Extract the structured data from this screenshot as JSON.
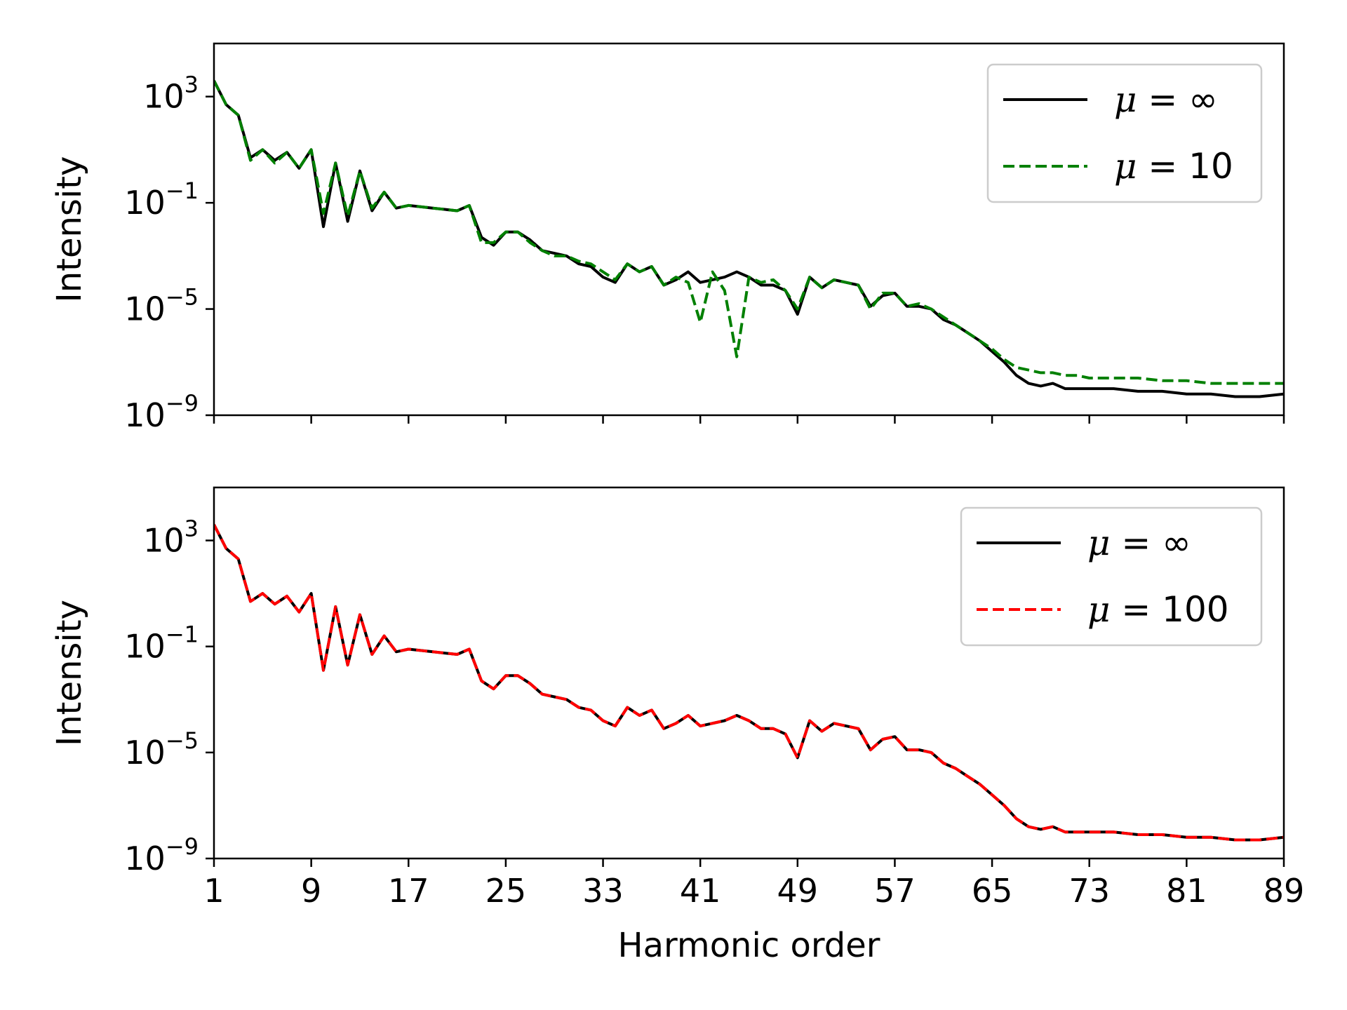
{
  "chart_data": [
    {
      "type": "line",
      "panel": "top",
      "title": "",
      "xlabel": "",
      "ylabel": "Intensity",
      "xlim": [
        1,
        89
      ],
      "ylim_log10": [
        -9,
        5
      ],
      "yscale": "log",
      "xticks": [
        1,
        9,
        17,
        25,
        33,
        41,
        49,
        57,
        65,
        73,
        81,
        89
      ],
      "xtick_labels_visible": false,
      "yticks": [
        {
          "base": "10",
          "exp": "3",
          "log10": 3
        },
        {
          "base": "10",
          "exp": "−1",
          "log10": -1
        },
        {
          "base": "10",
          "exp": "−5",
          "log10": -5
        },
        {
          "base": "10",
          "exp": "−9",
          "log10": -9
        }
      ],
      "legend": {
        "location": "upper right",
        "entries": [
          {
            "var": "μ",
            "rest": " = ∞",
            "color": "#000000",
            "dash": "solid"
          },
          {
            "var": "μ",
            "rest": " = 10",
            "color": "#008000",
            "dash": "dashed"
          }
        ]
      },
      "series": [
        {
          "key": "inf",
          "color": "#000000",
          "dash": "solid",
          "x": [
            1,
            2,
            3,
            4,
            5,
            6,
            7,
            8,
            9,
            10,
            11,
            12,
            13,
            14,
            15,
            16,
            17,
            19,
            21,
            22,
            23,
            24,
            25,
            26,
            27,
            28,
            29,
            30,
            31,
            32,
            33,
            34,
            35,
            36,
            37,
            38,
            39,
            40,
            41,
            42,
            43,
            44,
            45,
            46,
            47,
            48,
            49,
            50,
            51,
            52,
            53,
            54,
            55,
            56,
            57,
            58,
            59,
            60,
            61,
            62,
            63,
            64,
            65,
            66,
            67,
            68,
            69,
            70,
            71,
            72,
            73,
            75,
            77,
            79,
            81,
            83,
            85,
            87,
            89
          ],
          "log10_y": [
            3.6,
            2.7,
            2.3,
            0.7,
            1.0,
            0.6,
            0.9,
            0.3,
            1.0,
            -1.9,
            0.5,
            -1.7,
            0.2,
            -1.3,
            -0.6,
            -1.2,
            -1.1,
            -1.2,
            -1.3,
            -1.1,
            -2.3,
            -2.6,
            -2.1,
            -2.1,
            -2.4,
            -2.8,
            -2.9,
            -3.0,
            -3.3,
            -3.4,
            -3.8,
            -4.0,
            -3.3,
            -3.6,
            -3.4,
            -4.1,
            -3.9,
            -3.6,
            -4.0,
            -3.9,
            -3.8,
            -3.6,
            -3.8,
            -4.1,
            -4.1,
            -4.3,
            -5.2,
            -3.8,
            -4.2,
            -3.9,
            -4.0,
            -4.1,
            -4.9,
            -4.5,
            -4.4,
            -4.9,
            -4.9,
            -5.0,
            -5.4,
            -5.6,
            -5.9,
            -6.2,
            -6.6,
            -7.0,
            -7.5,
            -7.8,
            -7.9,
            -7.8,
            -8.0,
            -8.0,
            -8.0,
            -8.0,
            -8.1,
            -8.1,
            -8.2,
            -8.2,
            -8.3,
            -8.3,
            -8.2
          ]
        },
        {
          "key": "mu10",
          "color": "#008000",
          "dash": "dashed",
          "x": [
            1,
            2,
            3,
            4,
            5,
            6,
            7,
            8,
            9,
            10,
            11,
            12,
            13,
            14,
            15,
            16,
            17,
            19,
            21,
            22,
            23,
            24,
            25,
            26,
            27,
            28,
            29,
            30,
            31,
            32,
            33,
            34,
            35,
            36,
            37,
            38,
            39,
            40,
            41,
            42,
            43,
            44,
            45,
            46,
            47,
            48,
            49,
            50,
            51,
            52,
            53,
            54,
            55,
            56,
            57,
            58,
            59,
            60,
            61,
            62,
            63,
            64,
            65,
            66,
            67,
            68,
            69,
            70,
            71,
            72,
            73,
            75,
            77,
            79,
            81,
            83,
            85,
            87,
            89
          ],
          "log10_y": [
            3.6,
            2.7,
            2.3,
            0.6,
            1.0,
            0.5,
            0.9,
            0.3,
            1.0,
            -1.4,
            0.5,
            -1.5,
            0.2,
            -1.2,
            -0.6,
            -1.2,
            -1.1,
            -1.2,
            -1.3,
            -1.1,
            -2.5,
            -2.5,
            -2.1,
            -2.1,
            -2.5,
            -2.8,
            -3.0,
            -3.0,
            -3.2,
            -3.3,
            -3.6,
            -3.9,
            -3.3,
            -3.6,
            -3.4,
            -4.1,
            -3.8,
            -4.0,
            -5.5,
            -3.6,
            -4.3,
            -6.8,
            -3.8,
            -4.0,
            -3.9,
            -4.3,
            -5.0,
            -3.8,
            -4.2,
            -3.9,
            -4.0,
            -4.1,
            -5.0,
            -4.4,
            -4.4,
            -4.9,
            -4.8,
            -5.0,
            -5.3,
            -5.6,
            -5.9,
            -6.2,
            -6.5,
            -6.9,
            -7.2,
            -7.3,
            -7.4,
            -7.4,
            -7.5,
            -7.5,
            -7.6,
            -7.6,
            -7.6,
            -7.7,
            -7.7,
            -7.8,
            -7.8,
            -7.8,
            -7.8
          ]
        }
      ]
    },
    {
      "type": "line",
      "panel": "bottom",
      "title": "",
      "xlabel": "Harmonic order",
      "ylabel": "Intensity",
      "xlim": [
        1,
        89
      ],
      "ylim_log10": [
        -9,
        5
      ],
      "yscale": "log",
      "xticks": [
        1,
        9,
        17,
        25,
        33,
        41,
        49,
        57,
        65,
        73,
        81,
        89
      ],
      "xtick_labels": [
        "1",
        "9",
        "17",
        "25",
        "33",
        "41",
        "49",
        "57",
        "65",
        "73",
        "81",
        "89"
      ],
      "yticks": [
        {
          "base": "10",
          "exp": "3",
          "log10": 3
        },
        {
          "base": "10",
          "exp": "−1",
          "log10": -1
        },
        {
          "base": "10",
          "exp": "−5",
          "log10": -5
        },
        {
          "base": "10",
          "exp": "−9",
          "log10": -9
        }
      ],
      "legend": {
        "location": "upper right",
        "entries": [
          {
            "var": "μ",
            "rest": " = ∞",
            "color": "#000000",
            "dash": "solid"
          },
          {
            "var": "μ",
            "rest": " = 100",
            "color": "#ff0000",
            "dash": "dashed"
          }
        ]
      },
      "series": [
        {
          "key": "inf",
          "color": "#000000",
          "dash": "solid",
          "x": [
            1,
            2,
            3,
            4,
            5,
            6,
            7,
            8,
            9,
            10,
            11,
            12,
            13,
            14,
            15,
            16,
            17,
            19,
            21,
            22,
            23,
            24,
            25,
            26,
            27,
            28,
            29,
            30,
            31,
            32,
            33,
            34,
            35,
            36,
            37,
            38,
            39,
            40,
            41,
            42,
            43,
            44,
            45,
            46,
            47,
            48,
            49,
            50,
            51,
            52,
            53,
            54,
            55,
            56,
            57,
            58,
            59,
            60,
            61,
            62,
            63,
            64,
            65,
            66,
            67,
            68,
            69,
            70,
            71,
            72,
            73,
            75,
            77,
            79,
            81,
            83,
            85,
            87,
            89
          ],
          "log10_y": [
            3.6,
            2.7,
            2.3,
            0.7,
            1.0,
            0.6,
            0.9,
            0.3,
            1.0,
            -1.9,
            0.5,
            -1.7,
            0.2,
            -1.3,
            -0.6,
            -1.2,
            -1.1,
            -1.2,
            -1.3,
            -1.1,
            -2.3,
            -2.6,
            -2.1,
            -2.1,
            -2.4,
            -2.8,
            -2.9,
            -3.0,
            -3.3,
            -3.4,
            -3.8,
            -4.0,
            -3.3,
            -3.6,
            -3.4,
            -4.1,
            -3.9,
            -3.6,
            -4.0,
            -3.9,
            -3.8,
            -3.6,
            -3.8,
            -4.1,
            -4.1,
            -4.3,
            -5.2,
            -3.8,
            -4.2,
            -3.9,
            -4.0,
            -4.1,
            -4.9,
            -4.5,
            -4.4,
            -4.9,
            -4.9,
            -5.0,
            -5.4,
            -5.6,
            -5.9,
            -6.2,
            -6.6,
            -7.0,
            -7.5,
            -7.8,
            -7.9,
            -7.8,
            -8.0,
            -8.0,
            -8.0,
            -8.0,
            -8.1,
            -8.1,
            -8.2,
            -8.2,
            -8.3,
            -8.3,
            -8.2
          ]
        },
        {
          "key": "mu100",
          "color": "#ff0000",
          "dash": "dashed",
          "x": [
            1,
            2,
            3,
            4,
            5,
            6,
            7,
            8,
            9,
            10,
            11,
            12,
            13,
            14,
            15,
            16,
            17,
            19,
            21,
            22,
            23,
            24,
            25,
            26,
            27,
            28,
            29,
            30,
            31,
            32,
            33,
            34,
            35,
            36,
            37,
            38,
            39,
            40,
            41,
            42,
            43,
            44,
            45,
            46,
            47,
            48,
            49,
            50,
            51,
            52,
            53,
            54,
            55,
            56,
            57,
            58,
            59,
            60,
            61,
            62,
            63,
            64,
            65,
            66,
            67,
            68,
            69,
            70,
            71,
            72,
            73,
            75,
            77,
            79,
            81,
            83,
            85,
            87,
            89
          ],
          "log10_y": [
            3.6,
            2.7,
            2.3,
            0.7,
            1.0,
            0.6,
            0.9,
            0.3,
            1.0,
            -1.9,
            0.5,
            -1.7,
            0.2,
            -1.3,
            -0.6,
            -1.2,
            -1.1,
            -1.2,
            -1.3,
            -1.1,
            -2.3,
            -2.6,
            -2.1,
            -2.1,
            -2.4,
            -2.8,
            -2.9,
            -3.0,
            -3.3,
            -3.4,
            -3.8,
            -4.0,
            -3.3,
            -3.6,
            -3.4,
            -4.1,
            -3.9,
            -3.6,
            -4.0,
            -3.9,
            -3.8,
            -3.6,
            -3.8,
            -4.1,
            -4.1,
            -4.3,
            -5.2,
            -3.8,
            -4.2,
            -3.9,
            -4.0,
            -4.1,
            -4.9,
            -4.5,
            -4.4,
            -4.9,
            -4.9,
            -5.0,
            -5.4,
            -5.6,
            -5.9,
            -6.2,
            -6.6,
            -7.0,
            -7.5,
            -7.8,
            -7.9,
            -7.8,
            -8.0,
            -8.0,
            -8.0,
            -8.0,
            -8.1,
            -8.1,
            -8.2,
            -8.2,
            -8.3,
            -8.3,
            -8.2
          ]
        }
      ]
    }
  ]
}
